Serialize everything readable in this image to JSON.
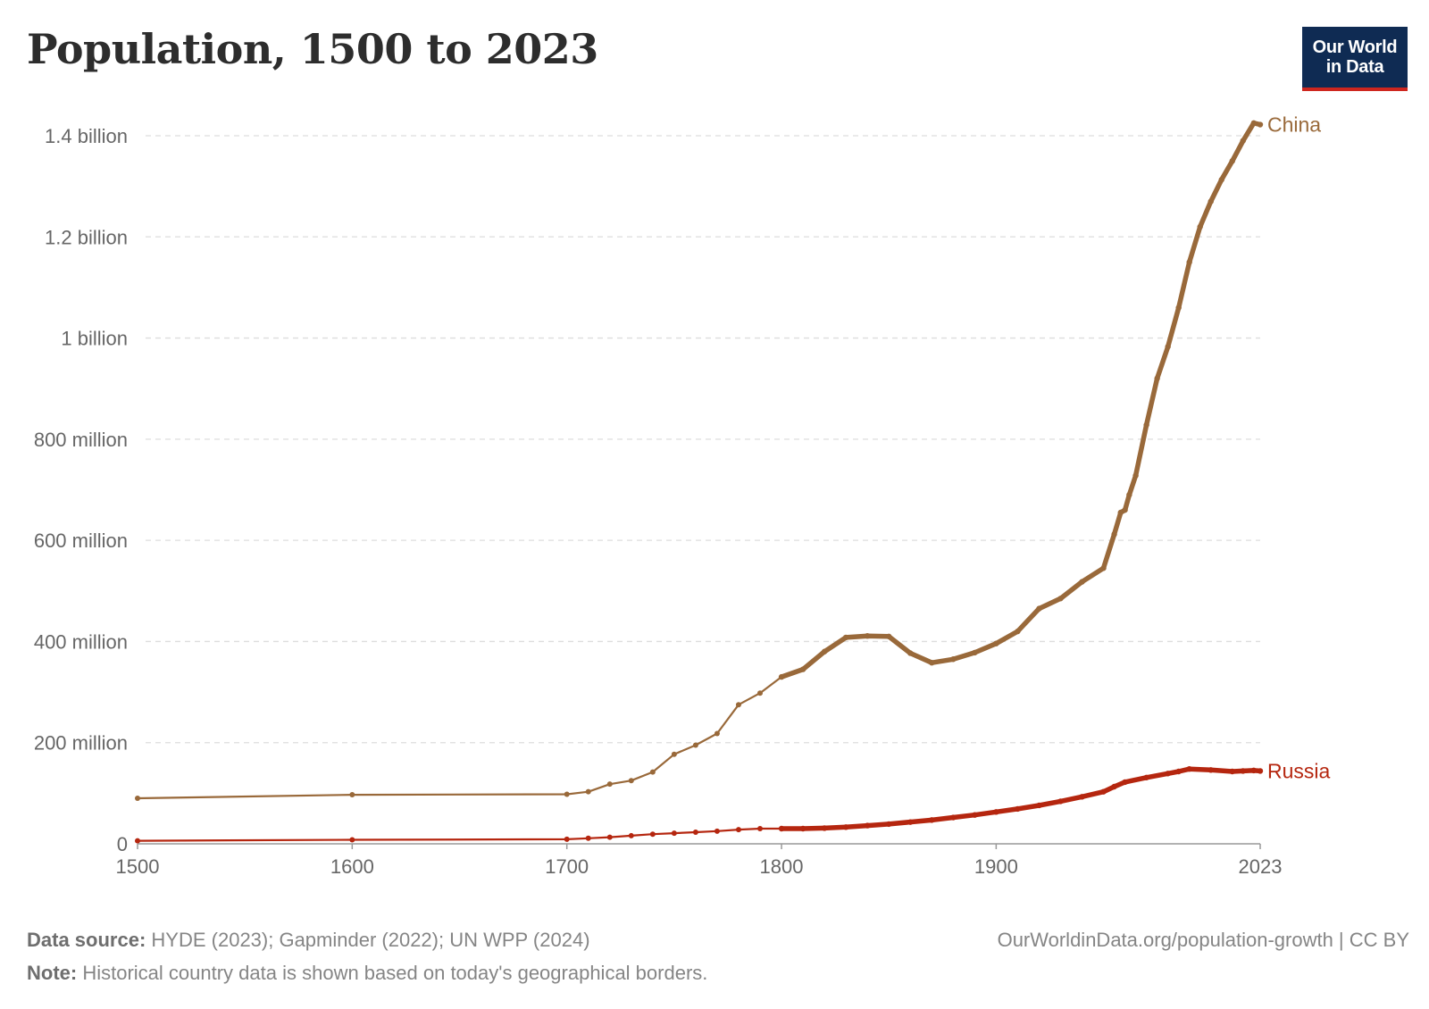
{
  "header": {
    "title": "Population, 1500 to 2023",
    "logo_line1": "Our World",
    "logo_line2": "in Data"
  },
  "footer": {
    "source_label": "Data source:",
    "source_text": "HYDE (2023); Gapminder (2022); UN WPP (2024)",
    "note_label": "Note:",
    "note_text": "Historical country data is shown based on today's geographical borders.",
    "credit": "OurWorldinData.org/population-growth | CC BY"
  },
  "colors": {
    "china": "#99693a",
    "russia": "#b5260f",
    "grid": "#dddddd",
    "axis_text": "#666666"
  },
  "chart_data": {
    "type": "line",
    "title": "Population, 1500 to 2023",
    "xlim": [
      1500,
      2023
    ],
    "ylim": [
      0,
      1400000000
    ],
    "x_ticks": [
      {
        "value": 1500,
        "label": "1500"
      },
      {
        "value": 1600,
        "label": "1600"
      },
      {
        "value": 1700,
        "label": "1700"
      },
      {
        "value": 1800,
        "label": "1800"
      },
      {
        "value": 1900,
        "label": "1900"
      },
      {
        "value": 2023,
        "label": "2023"
      }
    ],
    "y_ticks": [
      {
        "value": 0,
        "label": "0"
      },
      {
        "value": 200000000,
        "label": "200 million"
      },
      {
        "value": 400000000,
        "label": "400 million"
      },
      {
        "value": 600000000,
        "label": "600 million"
      },
      {
        "value": 800000000,
        "label": "800 million"
      },
      {
        "value": 1000000000,
        "label": "1 billion"
      },
      {
        "value": 1200000000,
        "label": "1.2 billion"
      },
      {
        "value": 1400000000,
        "label": "1.4 billion"
      }
    ],
    "grid": true,
    "legend": "end-of-line labels",
    "series": [
      {
        "name": "China",
        "points": [
          [
            1500,
            90000000
          ],
          [
            1600,
            97000000
          ],
          [
            1700,
            98000000
          ],
          [
            1710,
            103000000
          ],
          [
            1720,
            118000000
          ],
          [
            1730,
            125000000
          ],
          [
            1740,
            142000000
          ],
          [
            1750,
            177000000
          ],
          [
            1760,
            195000000
          ],
          [
            1770,
            218000000
          ],
          [
            1780,
            275000000
          ],
          [
            1790,
            298000000
          ],
          [
            1800,
            330000000
          ],
          [
            1810,
            345000000
          ],
          [
            1820,
            380000000
          ],
          [
            1830,
            408000000
          ],
          [
            1840,
            411000000
          ],
          [
            1850,
            410000000
          ],
          [
            1860,
            377000000
          ],
          [
            1870,
            358000000
          ],
          [
            1880,
            365000000
          ],
          [
            1890,
            378000000
          ],
          [
            1900,
            396000000
          ],
          [
            1910,
            420000000
          ],
          [
            1920,
            465000000
          ],
          [
            1930,
            485000000
          ],
          [
            1940,
            518000000
          ],
          [
            1950,
            545000000
          ],
          [
            1955,
            612000000
          ],
          [
            1958,
            655000000
          ],
          [
            1960,
            660000000
          ],
          [
            1962,
            690000000
          ],
          [
            1965,
            728000000
          ],
          [
            1970,
            828000000
          ],
          [
            1975,
            920000000
          ],
          [
            1980,
            983000000
          ],
          [
            1985,
            1060000000
          ],
          [
            1990,
            1150000000
          ],
          [
            1995,
            1220000000
          ],
          [
            2000,
            1270000000
          ],
          [
            2005,
            1313000000
          ],
          [
            2010,
            1350000000
          ],
          [
            2015,
            1390000000
          ],
          [
            2020,
            1425000000
          ],
          [
            2023,
            1422000000
          ]
        ]
      },
      {
        "name": "Russia",
        "points": [
          [
            1500,
            6000000
          ],
          [
            1600,
            8000000
          ],
          [
            1700,
            9000000
          ],
          [
            1710,
            11000000
          ],
          [
            1720,
            13000000
          ],
          [
            1730,
            16000000
          ],
          [
            1740,
            19000000
          ],
          [
            1750,
            21000000
          ],
          [
            1760,
            23000000
          ],
          [
            1770,
            25000000
          ],
          [
            1780,
            28000000
          ],
          [
            1790,
            30000000
          ],
          [
            1800,
            30000000
          ],
          [
            1810,
            30000000
          ],
          [
            1820,
            31000000
          ],
          [
            1830,
            33000000
          ],
          [
            1840,
            36000000
          ],
          [
            1850,
            39000000
          ],
          [
            1860,
            43000000
          ],
          [
            1870,
            47000000
          ],
          [
            1880,
            52000000
          ],
          [
            1890,
            57000000
          ],
          [
            1900,
            63000000
          ],
          [
            1910,
            69000000
          ],
          [
            1920,
            76000000
          ],
          [
            1930,
            84000000
          ],
          [
            1940,
            93000000
          ],
          [
            1950,
            103000000
          ],
          [
            1955,
            113000000
          ],
          [
            1960,
            122000000
          ],
          [
            1970,
            131000000
          ],
          [
            1980,
            139000000
          ],
          [
            1985,
            143000000
          ],
          [
            1990,
            148000000
          ],
          [
            2000,
            146000000
          ],
          [
            2010,
            143000000
          ],
          [
            2015,
            144000000
          ],
          [
            2020,
            145000000
          ],
          [
            2023,
            144000000
          ]
        ]
      }
    ]
  }
}
